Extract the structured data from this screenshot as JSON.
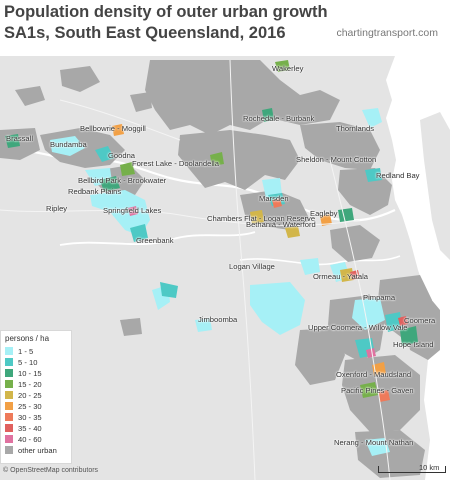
{
  "title": "Population density of outer urban growth SA1s, South East Queensland, 2016",
  "site": "chartingtransport.com",
  "legend": {
    "title": "persons / ha",
    "items": [
      {
        "label": "1 - 5",
        "color": "#a6f0f6"
      },
      {
        "label": "5 - 10",
        "color": "#4ec9c5"
      },
      {
        "label": "10 - 15",
        "color": "#3fa77c"
      },
      {
        "label": "15 - 20",
        "color": "#76b04b"
      },
      {
        "label": "20 - 25",
        "color": "#d2b64a"
      },
      {
        "label": "25 - 30",
        "color": "#f2a045"
      },
      {
        "label": "30 - 35",
        "color": "#ee7a5a"
      },
      {
        "label": "35 - 40",
        "color": "#e0605e"
      },
      {
        "label": "40 - 60",
        "color": "#e072a0"
      },
      {
        "label": "other urban",
        "color": "#a8a8a8"
      }
    ]
  },
  "colors": {
    "water": "#ffffff",
    "land": "#e4e4e4",
    "other_urban": "#a8a8a8"
  },
  "places": [
    {
      "name": "Wakerley"
    },
    {
      "name": "Rochedale - Burbank"
    },
    {
      "name": "Thornlands"
    },
    {
      "name": "Brassall"
    },
    {
      "name": "Bellbowrie - Moggill"
    },
    {
      "name": "Bundamba"
    },
    {
      "name": "Goodna"
    },
    {
      "name": "Forest Lake - Doolandella"
    },
    {
      "name": "Sheldon - Mount Cotton"
    },
    {
      "name": "Redland Bay"
    },
    {
      "name": "Bellbird Park - Brookwater"
    },
    {
      "name": "Redbank Plains"
    },
    {
      "name": "Springfield Lakes"
    },
    {
      "name": "Ripley"
    },
    {
      "name": "Marsden"
    },
    {
      "name": "Chambers Flat - Logan Reserve"
    },
    {
      "name": "Eagleby"
    },
    {
      "name": "Bethania - Waterford"
    },
    {
      "name": "Greenbank"
    },
    {
      "name": "Logan Village"
    },
    {
      "name": "Ormeau - Yatala"
    },
    {
      "name": "Pimpama"
    },
    {
      "name": "Jimboomba"
    },
    {
      "name": "Upper Coomera - Willow Vale"
    },
    {
      "name": "Coomera"
    },
    {
      "name": "Hope Island"
    },
    {
      "name": "Oxenford - Maudsland"
    },
    {
      "name": "Pacific Pines - Gaven"
    },
    {
      "name": "Nerang - Mount Nathan"
    }
  ],
  "attribution": "© OpenStreetMap contributors",
  "scale": "10 km"
}
